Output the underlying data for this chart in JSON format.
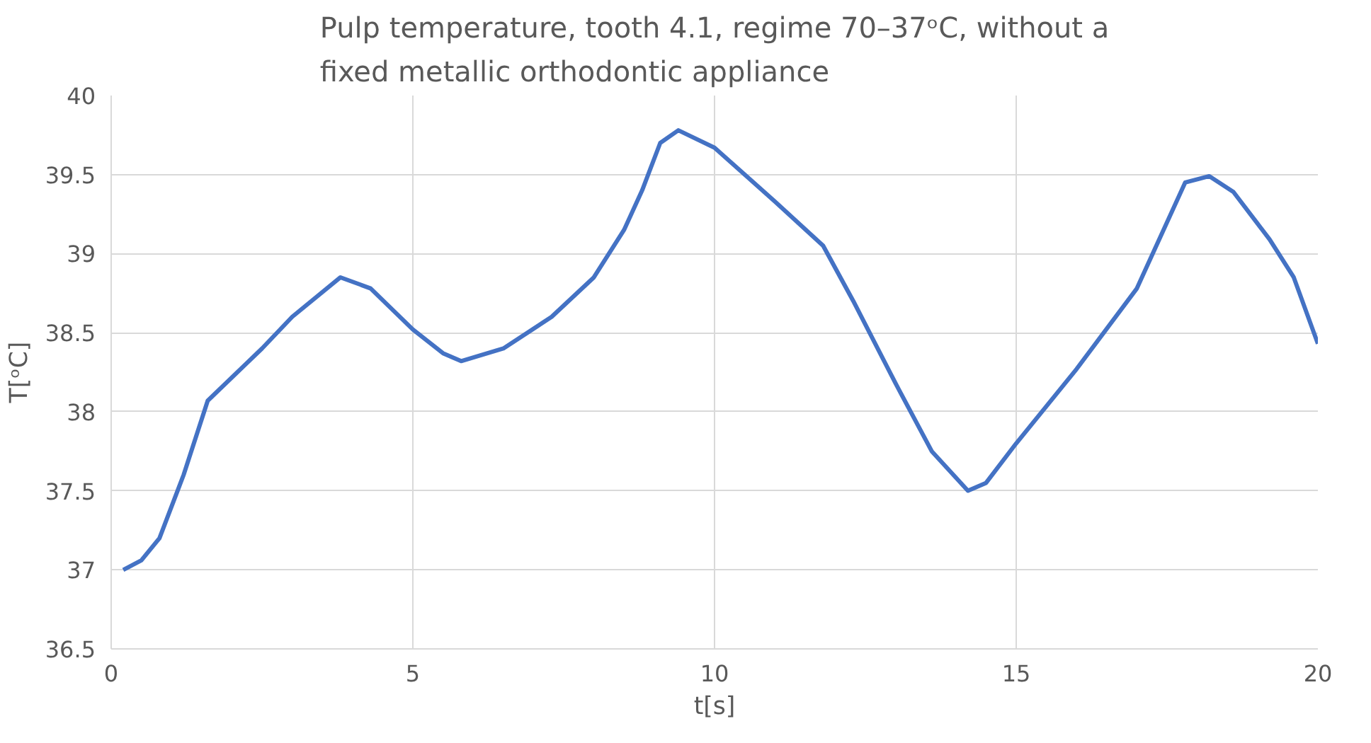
{
  "chart_data": {
    "type": "line",
    "title": "Pulp temperature, tooth 4.1, regime 70–37ᵒC, without a fixed metallic orthodontic appliance",
    "xlabel": "t[s]",
    "ylabel": "T[ᵒC]",
    "x": [
      0.2,
      0.5,
      0.8,
      1.2,
      1.6,
      2.5,
      3,
      3.8,
      4.3,
      5,
      5.5,
      5.8,
      6.5,
      7.3,
      8,
      8.5,
      8.8,
      9.1,
      9.4,
      10,
      11,
      11.8,
      12.3,
      13,
      13.6,
      14.2,
      14.5,
      15,
      16,
      17,
      17.8,
      18.2,
      18.6,
      19.2,
      19.6,
      20
    ],
    "series": [
      {
        "color": "#4472c4",
        "values": [
          37.0,
          37.06,
          37.2,
          37.6,
          38.07,
          38.4,
          38.6,
          38.85,
          38.78,
          38.52,
          38.37,
          38.32,
          38.4,
          38.6,
          38.85,
          39.15,
          39.4,
          39.7,
          39.78,
          39.67,
          39.33,
          39.05,
          38.7,
          38.18,
          37.75,
          37.5,
          37.55,
          37.8,
          38.27,
          38.78,
          39.45,
          39.49,
          39.39,
          39.09,
          38.85,
          38.43
        ]
      }
    ],
    "xlim": [
      0,
      20
    ],
    "xticks": [
      0,
      5,
      10,
      15,
      20
    ],
    "ylim": [
      36.5,
      40
    ],
    "yticks": [
      36.5,
      37,
      37.5,
      38,
      38.5,
      39,
      39.5,
      40
    ],
    "grid": true,
    "marker": "none",
    "line_style": "solid"
  }
}
